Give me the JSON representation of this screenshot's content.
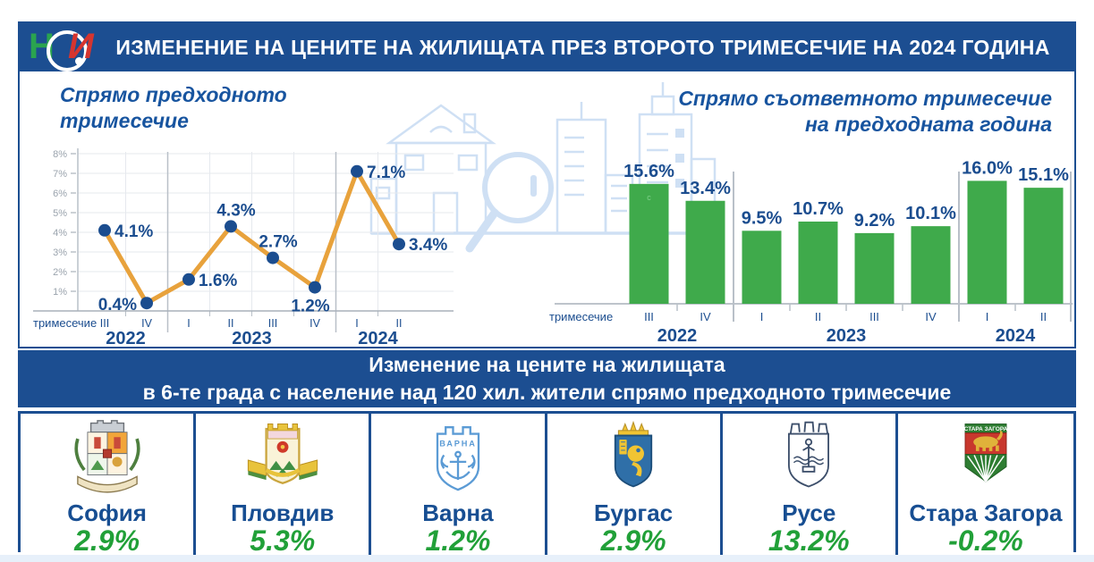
{
  "header": {
    "title": "ИЗМЕНЕНИЕ НА ЦЕНИТЕ НА ЖИЛИЩАТА ПРЕЗ ВТОРОТО ТРИМЕСЕЧИЕ НА 2024 ГОДИНА",
    "logo_letters": {
      "n": "Н",
      "i": "И"
    }
  },
  "banner": {
    "line1": "Изменение на цените на жилищата",
    "line2": "в 6-те града с население над 120 хил. жители спрямо предходното тримесечие"
  },
  "chart_data": [
    {
      "type": "line",
      "title_line1": "Спрямо предходното",
      "title_line2": "тримесечие",
      "x_axis_label": "тримесечие",
      "categories": [
        "III",
        "IV",
        "I",
        "II",
        "III",
        "IV",
        "I",
        "II"
      ],
      "year_groups": [
        {
          "label": "2022",
          "count": 2
        },
        {
          "label": "2023",
          "count": 4
        },
        {
          "label": "2024",
          "count": 2
        }
      ],
      "values": [
        4.1,
        0.4,
        1.6,
        4.3,
        2.7,
        1.2,
        7.1,
        3.4
      ],
      "labels": [
        "4.1%",
        "0.4%",
        "1.6%",
        "4.3%",
        "2.7%",
        "1.2%",
        "7.1%",
        "3.4%"
      ],
      "label_positions": [
        "right",
        "left",
        "right",
        "above",
        "above",
        "below",
        "right",
        "right"
      ],
      "ylim": [
        0,
        8
      ],
      "yticks": [
        "1%",
        "2%",
        "3%",
        "4%",
        "5%",
        "6%",
        "7%",
        "8%"
      ],
      "grid": true,
      "line_color": "#E8A23C",
      "point_color": "#1B4D8F"
    },
    {
      "type": "bar",
      "title_line1": "Спрямо съответното тримесечие",
      "title_line2": "на предходната година",
      "x_axis_label": "тримесечие",
      "categories": [
        "III",
        "IV",
        "I",
        "II",
        "III",
        "IV",
        "I",
        "II"
      ],
      "year_groups": [
        {
          "label": "2022",
          "count": 2
        },
        {
          "label": "2023",
          "count": 4
        },
        {
          "label": "2024",
          "count": 2
        }
      ],
      "values": [
        15.6,
        13.4,
        9.5,
        10.7,
        9.2,
        10.1,
        16.0,
        15.1
      ],
      "labels": [
        "15.6%",
        "13.4%",
        "9.5%",
        "10.7%",
        "9.2%",
        "10.1%",
        "16.0%",
        "15.1%"
      ],
      "ylim": [
        0,
        18
      ],
      "bar_color": "#3FAA4B",
      "watermark": "c"
    }
  ],
  "cities": [
    {
      "name": "София",
      "value": "2.9%"
    },
    {
      "name": "Пловдив",
      "value": "5.3%"
    },
    {
      "name": "Варна",
      "value": "1.2%",
      "emblem_text": "ВАРНА"
    },
    {
      "name": "Бургас",
      "value": "2.9%"
    },
    {
      "name": "Русе",
      "value": "13.2%"
    },
    {
      "name": "Стара Загора",
      "value": "-0.2%",
      "emblem_text": "СТАРА ЗАГОРА"
    }
  ],
  "colors": {
    "primary_blue": "#1C4E91",
    "chart_label_blue": "#1B4D8F",
    "title_blue": "#17549F",
    "line_orange": "#E8A23C",
    "bar_green": "#3FAA4B",
    "value_green": "#21A038"
  }
}
